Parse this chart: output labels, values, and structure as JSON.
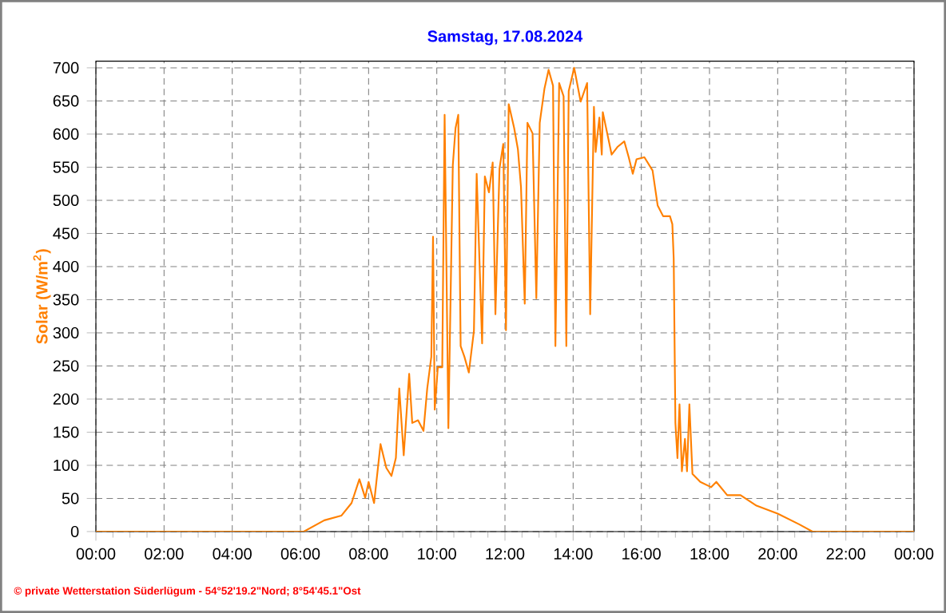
{
  "chart_data": {
    "type": "line",
    "title": "Samstag, 17.08.2024",
    "ylabel": "Solar  (W/m$^{2}$)",
    "annotations": [
      "© private Wetterstation Süderlügum - 54°52'19.2\"Nord; 8°54'45.1\"Ost"
    ],
    "xlim": [
      0,
      24
    ],
    "ylim": [
      0,
      710
    ],
    "xticks": [
      {
        "value": 0,
        "label": "00:00"
      },
      {
        "value": 2,
        "label": "02:00"
      },
      {
        "value": 4,
        "label": "04:00"
      },
      {
        "value": 6,
        "label": "06:00"
      },
      {
        "value": 8,
        "label": "08:00"
      },
      {
        "value": 10,
        "label": "10:00"
      },
      {
        "value": 12,
        "label": "12:00"
      },
      {
        "value": 14,
        "label": "14:00"
      },
      {
        "value": 16,
        "label": "16:00"
      },
      {
        "value": 18,
        "label": "18:00"
      },
      {
        "value": 20,
        "label": "20:00"
      },
      {
        "value": 22,
        "label": "22:00"
      },
      {
        "value": 24,
        "label": "00:00"
      }
    ],
    "yticks": [
      0,
      50,
      100,
      150,
      200,
      250,
      300,
      350,
      400,
      450,
      500,
      550,
      600,
      650,
      700
    ],
    "grid": true,
    "marker": "none",
    "line_style": "solid",
    "series": [
      {
        "color": "#ff8000",
        "x": [
          0,
          6.1,
          6.7,
          7.2,
          7.5,
          7.73,
          7.9,
          8.0,
          8.16,
          8.35,
          8.52,
          8.67,
          8.8,
          8.9,
          9.03,
          9.19,
          9.28,
          9.45,
          9.61,
          9.72,
          9.84,
          9.89,
          9.94,
          10.03,
          10.16,
          10.23,
          10.34,
          10.47,
          10.55,
          10.63,
          10.7,
          10.81,
          10.94,
          11.09,
          11.17,
          11.33,
          11.41,
          11.53,
          11.64,
          11.72,
          11.84,
          11.95,
          12.03,
          12.11,
          12.27,
          12.38,
          12.47,
          12.58,
          12.66,
          12.81,
          12.92,
          13.02,
          13.16,
          13.28,
          13.41,
          13.48,
          13.59,
          13.72,
          13.8,
          13.87,
          14.03,
          14.22,
          14.41,
          14.5,
          14.61,
          14.66,
          14.77,
          14.84,
          14.87,
          15.0,
          15.13,
          15.31,
          15.5,
          15.63,
          15.75,
          15.86,
          16.09,
          16.33,
          16.48,
          16.64,
          16.84,
          16.91,
          16.95,
          17.0,
          17.06,
          17.12,
          17.19,
          17.28,
          17.34,
          17.41,
          17.5,
          17.73,
          18.05,
          18.2,
          18.52,
          18.91,
          19.38,
          20.0,
          20.63,
          21.02,
          24
        ],
        "values": [
          0,
          0,
          17,
          24,
          43,
          79,
          51,
          75,
          43,
          132,
          96,
          84,
          111,
          216,
          115,
          238,
          164,
          168,
          152,
          216,
          264,
          445,
          184,
          248,
          248,
          629,
          156,
          553,
          609,
          629,
          280,
          264,
          240,
          303,
          540,
          284,
          536,
          512,
          557,
          328,
          548,
          585,
          304,
          645,
          609,
          577,
          520,
          344,
          617,
          601,
          352,
          617,
          669,
          697,
          673,
          280,
          677,
          657,
          280,
          665,
          700,
          649,
          677,
          328,
          641,
          573,
          625,
          569,
          633,
          601,
          569,
          581,
          589,
          565,
          540,
          562,
          565,
          545,
          492,
          476,
          476,
          464,
          412,
          164,
          111,
          192,
          91,
          140,
          91,
          192,
          87,
          75,
          67,
          75,
          55,
          55,
          39,
          27,
          11,
          0,
          0
        ]
      }
    ]
  }
}
